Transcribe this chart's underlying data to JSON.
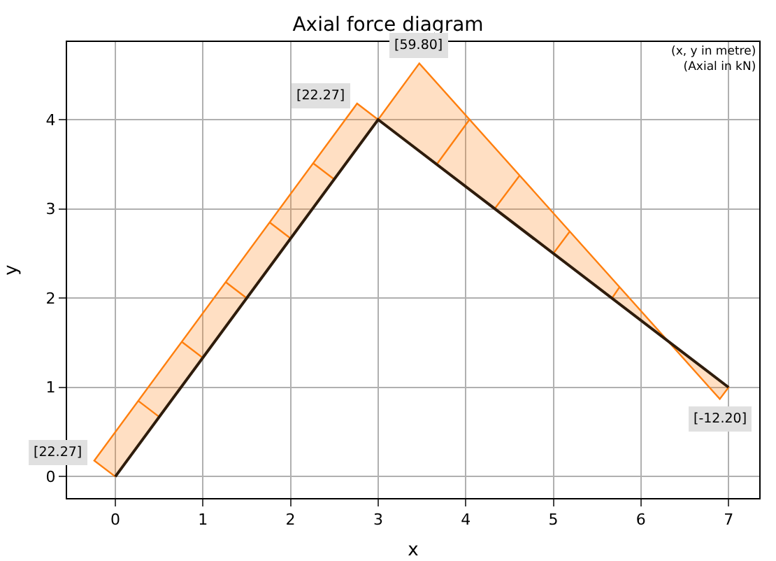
{
  "chart_data": {
    "type": "line",
    "title": "Axial force diagram",
    "xlabel": "x",
    "ylabel": "y",
    "xlim": [
      -0.55,
      7.35
    ],
    "ylim": [
      -0.24,
      4.87
    ],
    "xticks": [
      0,
      1,
      2,
      3,
      4,
      5,
      6,
      7
    ],
    "yticks": [
      0,
      1,
      2,
      3,
      4
    ],
    "grid": true,
    "series": [
      {
        "type": "area",
        "color": "#ff7f0e",
        "x": [
          0,
          0.5,
          0.26,
          0.5,
          1,
          0.76,
          1,
          1.5,
          1.26,
          1.5,
          2,
          1.76,
          2,
          2.5,
          2.26,
          2.5,
          3,
          2.76,
          -0.24,
          0
        ],
        "values": [
          0,
          0.67,
          0.85,
          0.67,
          1.33,
          1.51,
          1.33,
          2,
          2.18,
          2,
          2.67,
          2.85,
          2.67,
          3.33,
          3.51,
          3.33,
          4,
          4.18,
          0.18,
          0
        ]
      },
      {
        "type": "area",
        "color": "#ff7f0e",
        "x": [
          3,
          3.67,
          4.05,
          3.67,
          4.33,
          4.62,
          4.33,
          5,
          5.19,
          5,
          5.67,
          5.76,
          5.67,
          7,
          6.9,
          3.47,
          3
        ],
        "values": [
          4,
          3.5,
          4.01,
          3.5,
          3,
          3.38,
          3,
          2.5,
          2.75,
          2.5,
          2,
          2.13,
          2,
          1,
          0.87,
          4.63,
          4
        ]
      },
      {
        "color": "#2e1c0c",
        "x": [
          0,
          3,
          7
        ],
        "values": [
          0,
          4,
          1
        ]
      }
    ],
    "annotations": [
      {
        "text": "[22.27]",
        "x": -0.24,
        "y": 0.18
      },
      {
        "text": "[22.27]",
        "x": 2.76,
        "y": 4.18
      },
      {
        "text": "[59.80]",
        "x": 3.47,
        "y": 4.63
      },
      {
        "text": "[-12.20]",
        "x": 6.9,
        "y": 0.87
      },
      "(x, y in metre)\n(Axial in kN)"
    ]
  }
}
